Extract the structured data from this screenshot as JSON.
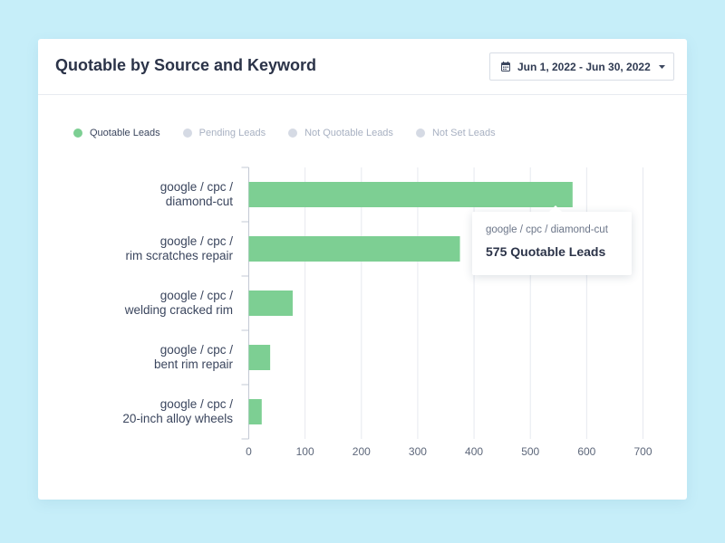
{
  "card": {
    "title": "Quotable by Source and Keyword",
    "date_range": "Jun 1, 2022 - Jun 30, 2022",
    "date_icon": "calendar-icon",
    "caret_icon": "caret-down-icon"
  },
  "legend": [
    {
      "label": "Quotable Leads",
      "color": "#7dcf93",
      "active": true
    },
    {
      "label": "Pending Leads",
      "color": "#d5dae4",
      "active": false
    },
    {
      "label": "Not Quotable Leads",
      "color": "#d5dae4",
      "active": false
    },
    {
      "label": "Not Set Leads",
      "color": "#d5dae4",
      "active": false
    }
  ],
  "tooltip": {
    "label": "google / cpc / diamond-cut",
    "value_text": "575 Quotable Leads"
  },
  "chart_data": {
    "type": "bar",
    "orientation": "horizontal",
    "categories": [
      [
        "google / cpc /",
        "diamond-cut"
      ],
      [
        "google / cpc /",
        "rim scratches repair"
      ],
      [
        "google / cpc /",
        "welding cracked rim"
      ],
      [
        "google / cpc /",
        "bent rim repair"
      ],
      [
        "google / cpc /",
        "20-inch alloy wheels"
      ]
    ],
    "series": [
      {
        "name": "Quotable Leads",
        "values": [
          575,
          375,
          78,
          38,
          23
        ],
        "color": "#7dcf93"
      }
    ],
    "xticks": [
      0,
      100,
      200,
      300,
      400,
      500,
      600,
      700
    ],
    "xlim": [
      0,
      700
    ],
    "grid": true,
    "title": "",
    "xlabel": "",
    "ylabel": ""
  }
}
